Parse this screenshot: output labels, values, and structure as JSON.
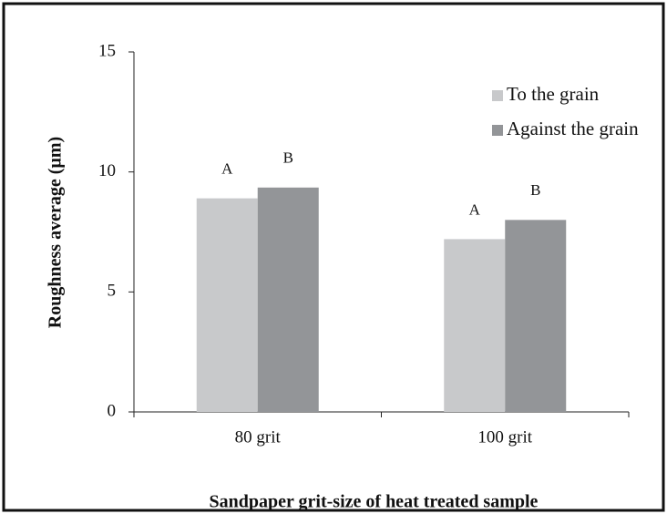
{
  "chart_data": {
    "type": "bar",
    "x_label": "Sandpaper grit-size of heat treated sample",
    "y_label": "Roughness average (µm)",
    "categories": [
      "80 grit",
      "100 grit"
    ],
    "series": [
      {
        "name": "To the grain",
        "color": "#c8c9cb",
        "values": [
          8.9,
          7.2
        ],
        "annotations": [
          "A",
          "A"
        ]
      },
      {
        "name": "Against the grain",
        "color": "#939598",
        "values": [
          9.35,
          8.0
        ],
        "annotations": [
          "B",
          "B"
        ]
      }
    ],
    "ylim": [
      0,
      15
    ],
    "yticks": [
      0,
      5,
      10,
      15
    ],
    "grid": false,
    "legend": "upper right"
  }
}
